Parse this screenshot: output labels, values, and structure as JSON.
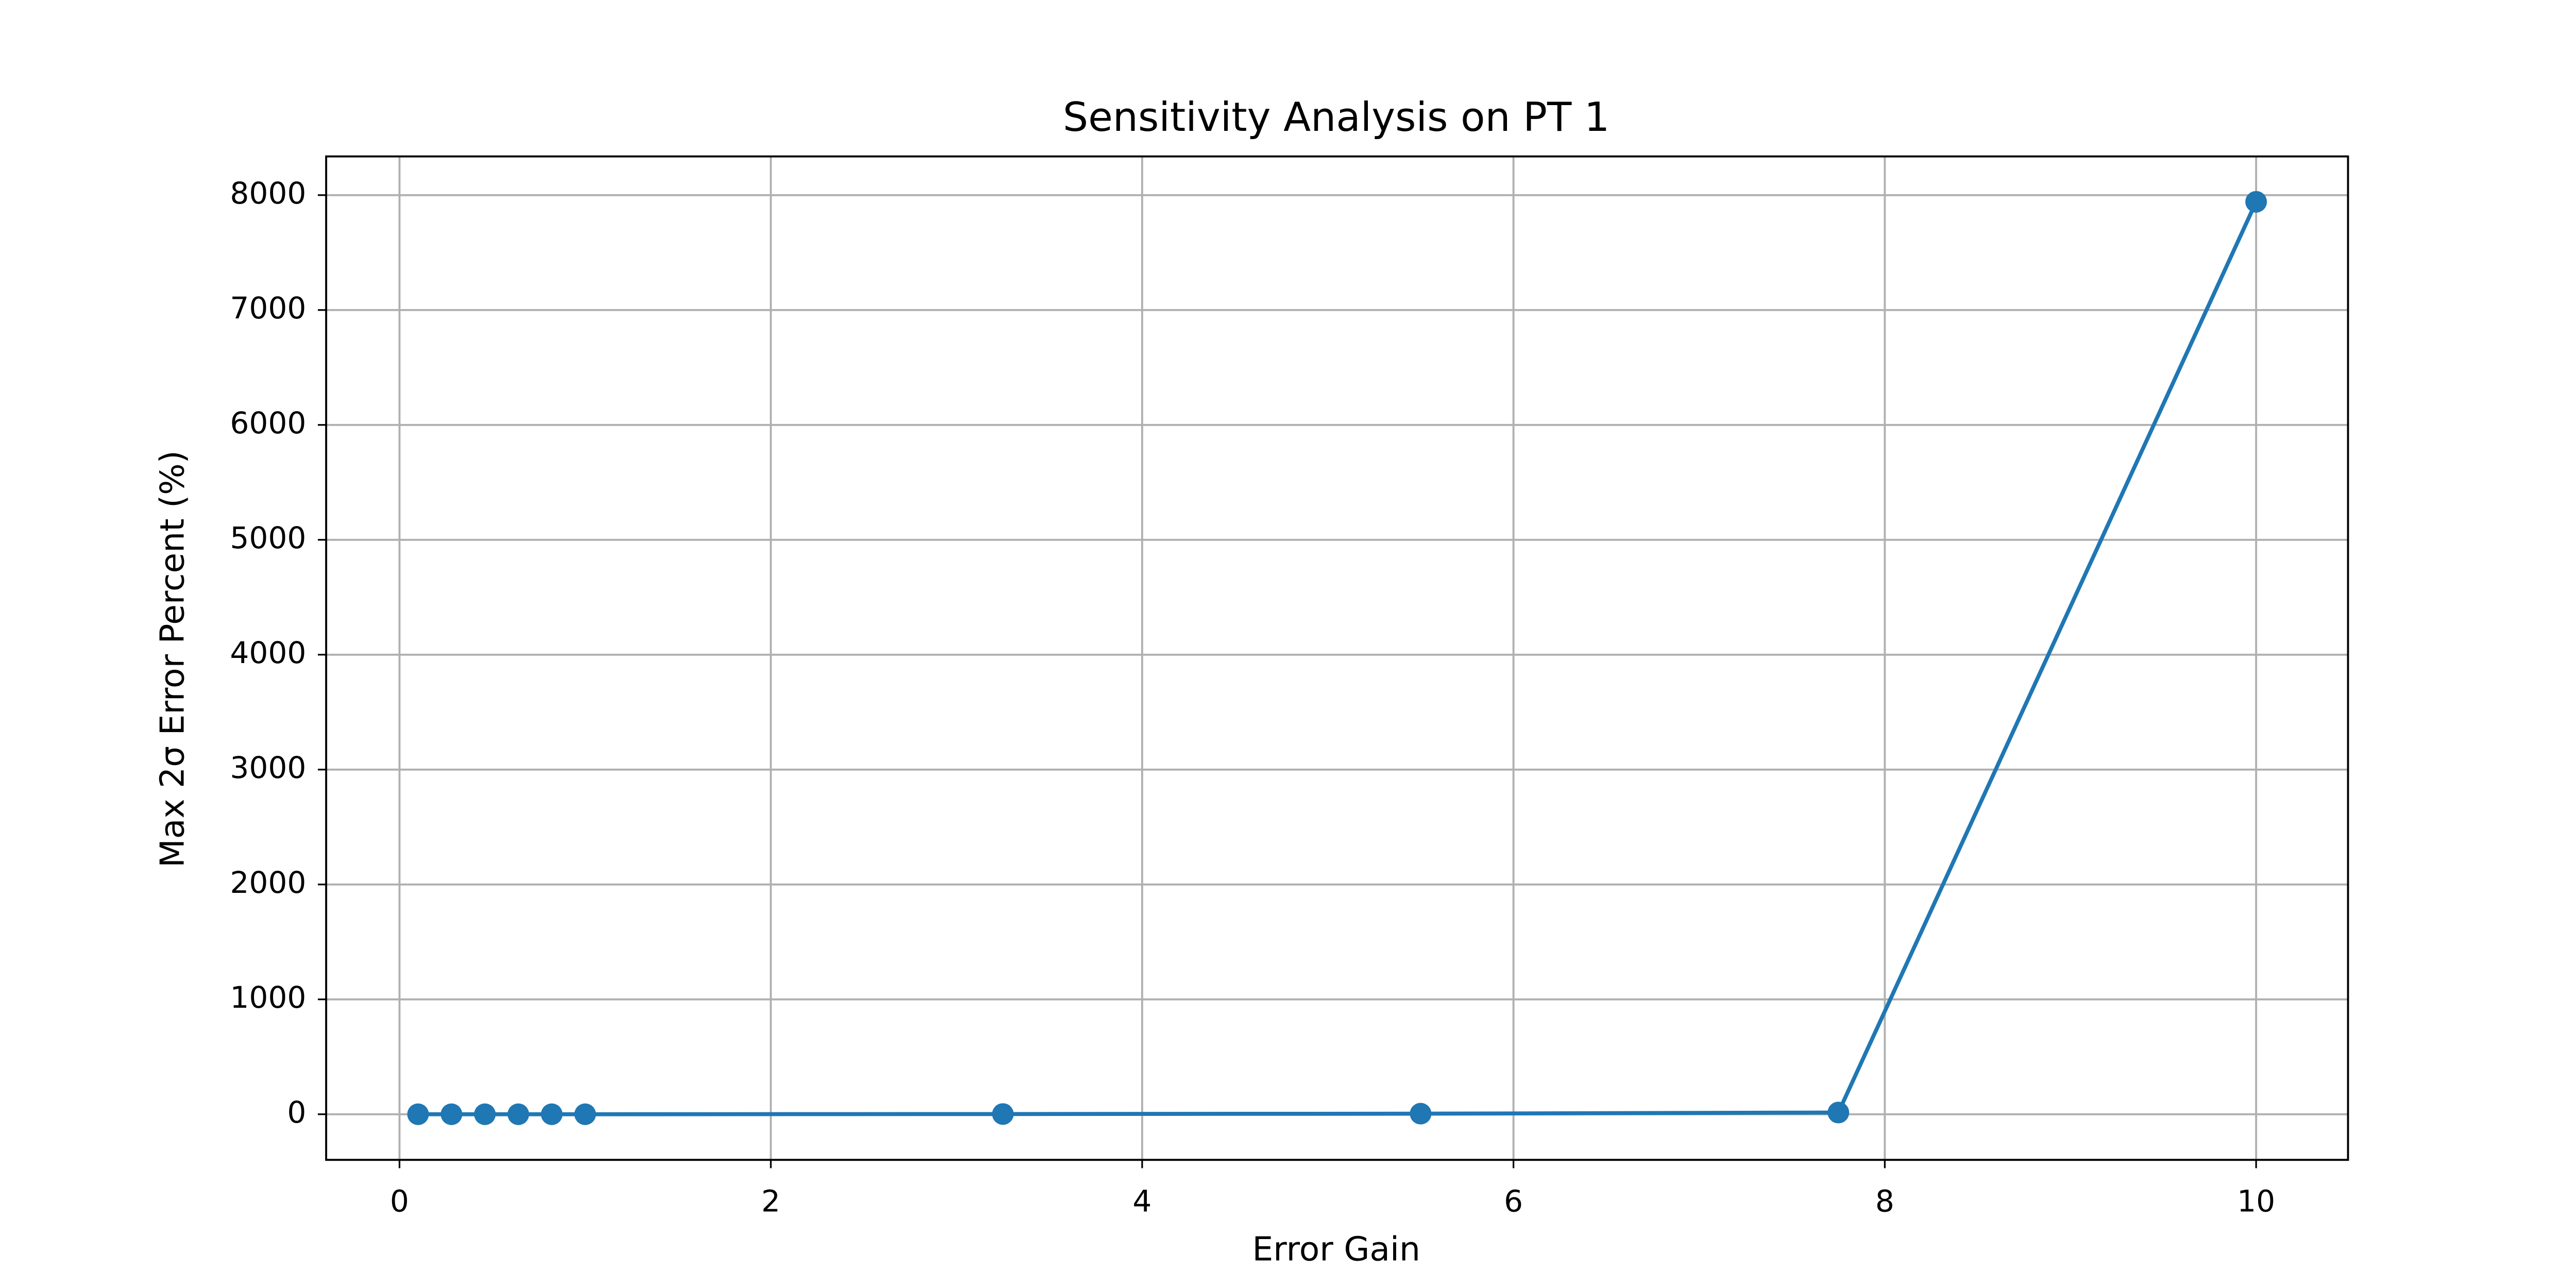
{
  "chart_data": {
    "type": "line",
    "title": "Sensitivity Analysis on PT 1",
    "x_label": "Error Gain",
    "y_label": "Max 2σ Error Percent (%)",
    "x": [
      0.1,
      0.28,
      0.46,
      0.64,
      0.82,
      1.0,
      3.25,
      5.5,
      7.75,
      10
    ],
    "series": [
      {
        "color": "#1f77b4",
        "values": [
          0,
          0,
          0,
          0,
          0,
          0,
          2,
          5,
          15,
          7942
        ]
      }
    ],
    "xlim": [
      -0.395,
      10.495
    ],
    "ylim": [
      -397,
      8337
    ],
    "xticks": [
      0,
      2,
      4,
      6,
      8,
      10
    ],
    "yticks": [
      0,
      1000,
      2000,
      3000,
      4000,
      5000,
      6000,
      7000,
      8000
    ],
    "grid": true
  }
}
